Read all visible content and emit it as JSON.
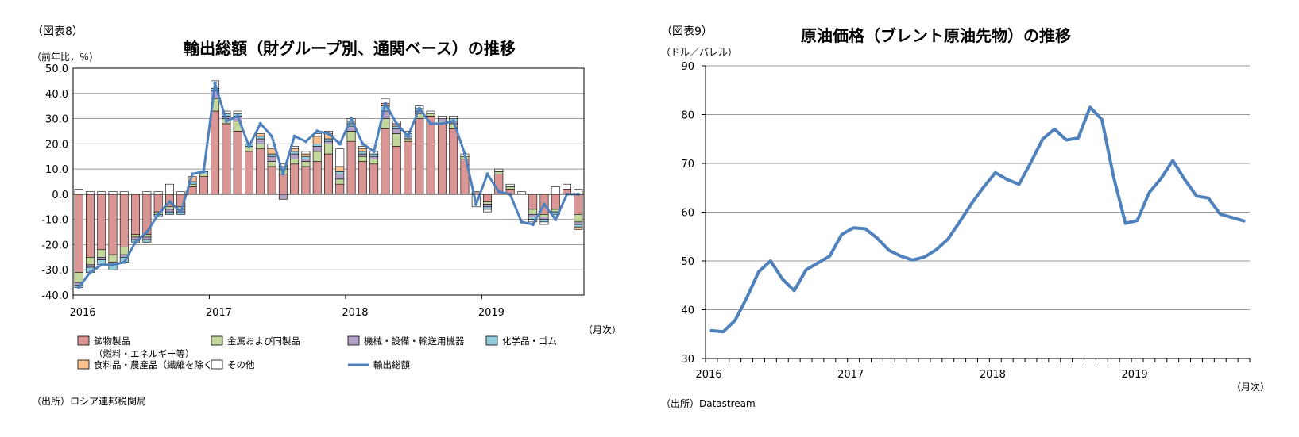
{
  "chart_data": [
    {
      "type": "bar",
      "figure_label": "（図表8）",
      "title": "輸出総額（財グループ別、通関ベース）の推移",
      "unit_label": "（前年比，％）",
      "x_unit_label": "（月次）",
      "source": "（出所）ロシア連邦税関局",
      "stacked": true,
      "ylim": [
        -40,
        50
      ],
      "yticks": [
        "50.0",
        "40.0",
        "30.0",
        "20.0",
        "10.0",
        "0.0",
        "-10.0",
        "-20.0",
        "-30.0",
        "-40.0"
      ],
      "year_labels": [
        "2016",
        "2017",
        "2018",
        "2019"
      ],
      "year_start_index": [
        0,
        12,
        24,
        36
      ],
      "months": 45,
      "grid": true,
      "legend_position": "bottom",
      "series": [
        {
          "name": "鉱物製品",
          "name_line2": "（燃料・エネルギー等）",
          "color": "#d99694",
          "values": [
            -31,
            -25,
            -22,
            -24,
            -21,
            -16,
            -16,
            -7,
            -5,
            -5,
            3,
            7,
            33,
            28,
            25,
            17,
            18,
            11,
            8,
            12,
            11,
            13,
            16,
            4,
            21,
            13,
            12,
            26,
            19,
            21,
            30,
            31,
            28,
            26,
            14,
            1,
            -3,
            8,
            2,
            0,
            -6,
            -8,
            -6,
            2,
            -8
          ]
        },
        {
          "name": "金属および同製品",
          "color": "#c3d69b",
          "values": [
            -4,
            -3,
            -3,
            -3,
            -3,
            -1,
            -1,
            -1,
            -1,
            -1,
            1,
            1,
            5,
            2,
            4,
            2,
            2,
            2,
            2,
            2,
            2,
            4,
            4,
            2,
            4,
            2,
            2,
            4,
            5,
            1,
            2,
            1,
            1,
            2,
            1,
            0,
            -1,
            1,
            1,
            0,
            -2,
            -1,
            -1,
            0,
            -3
          ]
        },
        {
          "name": "機械・設備・輸送用機器",
          "color": "#b3a2c7",
          "values": [
            -1,
            -1,
            -1,
            -1,
            -1,
            -1,
            -1,
            0,
            -1,
            -1,
            0,
            0,
            3,
            1,
            2,
            0,
            2,
            2,
            -2,
            2,
            1,
            2,
            1,
            2,
            2,
            1,
            1,
            3,
            2,
            1,
            1,
            0,
            1,
            1,
            0,
            0,
            -1,
            0,
            0,
            0,
            -1,
            -1,
            0,
            0,
            -1
          ]
        },
        {
          "name": "化学品・ゴム",
          "color": "#93cddd",
          "values": [
            -1,
            -2,
            -2,
            -2,
            -2,
            -1,
            -1,
            -1,
            -1,
            -1,
            1,
            1,
            1,
            1,
            1,
            1,
            1,
            1,
            1,
            1,
            1,
            1,
            1,
            1,
            1,
            1,
            1,
            2,
            1,
            1,
            1,
            0,
            0,
            1,
            0,
            0,
            -1,
            0,
            0,
            0,
            -1,
            -1,
            -1,
            0,
            -1
          ]
        },
        {
          "name": "食料品・農産品（繊維を除く）",
          "color": "#fac090",
          "values": [
            0,
            0,
            0,
            0,
            0,
            0,
            0,
            0,
            0,
            0,
            2,
            0,
            0,
            0,
            0,
            0,
            1,
            2,
            0,
            1,
            1,
            3,
            2,
            2,
            1,
            1,
            0,
            1,
            1,
            0,
            0,
            0,
            0,
            0,
            0,
            0,
            0,
            0,
            0,
            0,
            0,
            0,
            0,
            0,
            -1
          ]
        },
        {
          "name": "その他",
          "color": "#ffffff",
          "values": [
            2,
            1,
            1,
            1,
            1,
            0,
            1,
            1,
            4,
            1,
            0,
            0,
            3,
            1,
            1,
            0,
            0,
            2,
            1,
            1,
            1,
            1,
            1,
            7,
            1,
            1,
            1,
            2,
            1,
            1,
            1,
            1,
            1,
            1,
            1,
            -5,
            -1,
            1,
            1,
            1,
            -1,
            -1,
            3,
            2,
            2
          ]
        },
        {
          "name": "輸出総額",
          "type": "line",
          "color": "#4f81bd",
          "values": [
            -37,
            -31,
            -28,
            -28,
            -27,
            -19,
            -15,
            -8,
            -3,
            -7,
            8,
            9,
            44,
            29,
            31,
            19,
            28,
            23,
            8,
            23,
            21,
            25,
            24,
            20,
            30,
            20,
            17,
            36,
            28,
            23,
            34,
            28,
            28,
            29,
            16,
            -4,
            8,
            1,
            0,
            -11,
            -12,
            -4,
            -10,
            0,
            0
          ]
        }
      ]
    },
    {
      "type": "line",
      "figure_label": "（図表9）",
      "title": "原油価格（ブレント原油先物）の推移",
      "unit_label": "（ドル／バレル）",
      "x_unit_label": "（月次）",
      "source": "（出所）Datastream",
      "ylim": [
        30,
        90
      ],
      "yticks": [
        "90",
        "80",
        "70",
        "60",
        "50",
        "40",
        "30"
      ],
      "year_labels": [
        "2016",
        "2017",
        "2018",
        "2019"
      ],
      "year_start_index": [
        0,
        12,
        24,
        36
      ],
      "months": 46,
      "grid": true,
      "series": [
        {
          "name": "Brent",
          "color": "#4f81bd",
          "values": [
            35.7,
            35.5,
            37.8,
            42.5,
            47.8,
            50.0,
            46.3,
            43.9,
            48.2,
            49.6,
            51.0,
            55.4,
            56.8,
            56.6,
            54.7,
            52.2,
            51.0,
            50.2,
            50.8,
            52.3,
            54.5,
            58.1,
            61.8,
            65.1,
            68.1,
            66.7,
            65.7,
            70.2,
            75.0,
            77.0,
            74.8,
            75.2,
            81.5,
            79.0,
            67.1,
            57.7,
            58.3,
            64.0,
            66.9,
            70.6,
            66.7,
            63.3,
            62.9,
            59.6,
            58.9,
            58.2
          ]
        }
      ]
    }
  ]
}
